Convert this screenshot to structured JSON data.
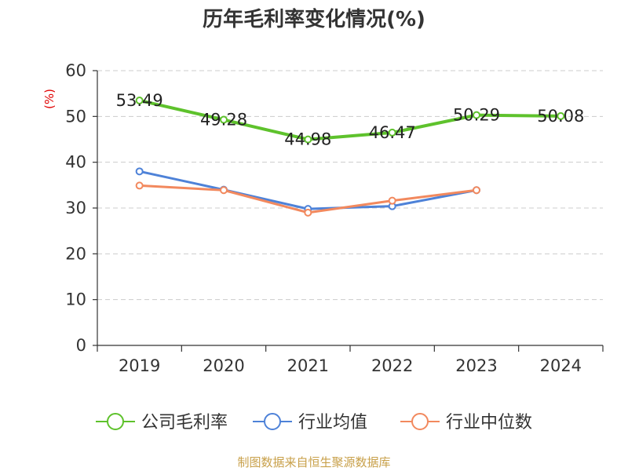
{
  "chart_data": {
    "type": "line",
    "title": "历年毛利率变化情况(%)",
    "unit_label": "(%)",
    "categories": [
      "2019",
      "2020",
      "2021",
      "2022",
      "2023",
      "2024"
    ],
    "ylim": [
      0,
      60
    ],
    "yticks": [
      "0",
      "10",
      "20",
      "30",
      "40",
      "50",
      "60"
    ],
    "grid": true,
    "legend_position": "bottom",
    "series": [
      {
        "name": "公司毛利率",
        "color": "#5ec22c",
        "values": [
          53.49,
          49.28,
          44.98,
          46.47,
          50.29,
          50.08
        ],
        "labels": [
          "53.49",
          "49.28",
          "44.98",
          "46.47",
          "50.29",
          "50.08"
        ]
      },
      {
        "name": "行业均值",
        "color": "#4e82d8",
        "values": [
          38.0,
          34.0,
          29.8,
          30.4,
          33.9,
          null
        ]
      },
      {
        "name": "行业中位数",
        "color": "#f2895e",
        "values": [
          34.9,
          33.9,
          29.0,
          31.6,
          33.9,
          null
        ]
      }
    ]
  },
  "source": "制图数据来自恒生聚源数据库"
}
